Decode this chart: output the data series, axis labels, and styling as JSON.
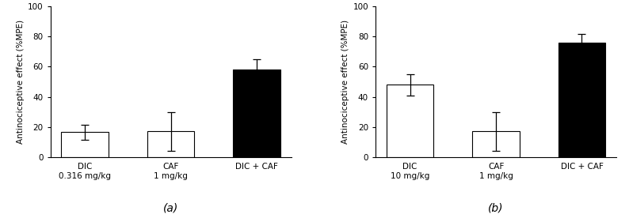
{
  "subplots": [
    {
      "label": "(a)",
      "categories": [
        "DIC\n0.316 mg/kg",
        "CAF\n1 mg/kg",
        "DIC + CAF"
      ],
      "values": [
        16.5,
        17,
        58
      ],
      "errors": [
        5,
        13,
        7
      ],
      "colors": [
        "white",
        "white",
        "black"
      ],
      "edge_colors": [
        "black",
        "black",
        "black"
      ],
      "ylabel": "Antinociceptive effect (%MPE)",
      "ylim": [
        0,
        100
      ],
      "yticks": [
        0,
        20,
        40,
        60,
        80,
        100
      ]
    },
    {
      "label": "(b)",
      "categories": [
        "DIC\n10 mg/kg",
        "CAF\n1 mg/kg",
        "DIC + CAF"
      ],
      "values": [
        48,
        17,
        76
      ],
      "errors": [
        7,
        13,
        6
      ],
      "colors": [
        "white",
        "white",
        "black"
      ],
      "edge_colors": [
        "black",
        "black",
        "black"
      ],
      "ylabel": "Antinociceptive effect (%MPE)",
      "ylim": [
        0,
        100
      ],
      "yticks": [
        0,
        20,
        40,
        60,
        80,
        100
      ]
    }
  ],
  "bar_width": 0.55,
  "fig_bgcolor": "#ffffff",
  "label_fontsize": 7.5,
  "tick_fontsize": 7.5,
  "subplot_label_fontsize": 10
}
